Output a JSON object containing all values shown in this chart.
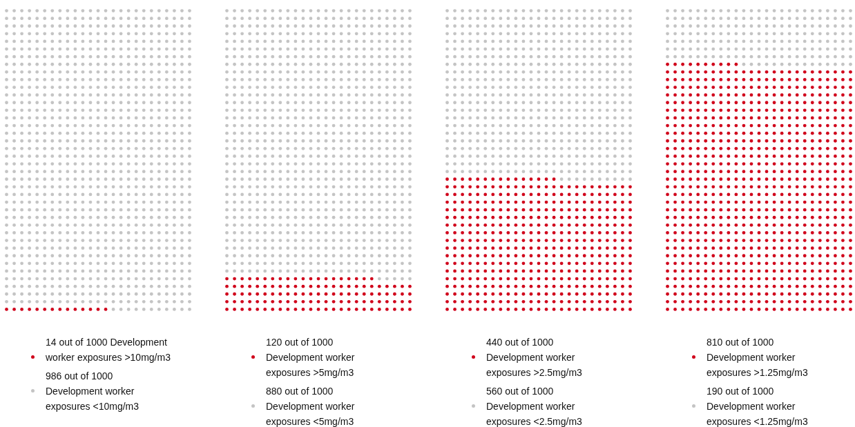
{
  "chart_data": [
    {
      "type": "other",
      "categories": [
        "Development worker exposures >10mg/m3",
        "Development worker exposures <10mg/m3"
      ],
      "values": [
        14,
        986
      ],
      "value_labels": [
        "14 out of 1000",
        "986 out of 1000"
      ],
      "colors": [
        "#d0021b",
        "#c4c4c4"
      ]
    },
    {
      "type": "other",
      "categories": [
        "Development worker exposures >5mg/m3",
        "Development worker exposures <5mg/m3"
      ],
      "values": [
        120,
        880
      ],
      "value_labels": [
        "120 out of 1000",
        "880 out of 1000"
      ],
      "colors": [
        "#d0021b",
        "#c4c4c4"
      ]
    },
    {
      "type": "other",
      "categories": [
        "Development worker exposures >2.5mg/m3",
        "Development worker exposures <2.5mg/m3"
      ],
      "values": [
        440,
        560
      ],
      "value_labels": [
        "440 out of 1000",
        "560 out of 1000"
      ],
      "colors": [
        "#d0021b",
        "#c4c4c4"
      ]
    },
    {
      "type": "other",
      "categories": [
        "Development worker exposures >1.25mg/m3",
        "Development worker exposures <1.25mg/m3"
      ],
      "values": [
        810,
        190
      ],
      "value_labels": [
        "810 out of 1000",
        "190 out of 1000"
      ],
      "colors": [
        "#d0021b",
        "#c4c4c4"
      ]
    }
  ]
}
